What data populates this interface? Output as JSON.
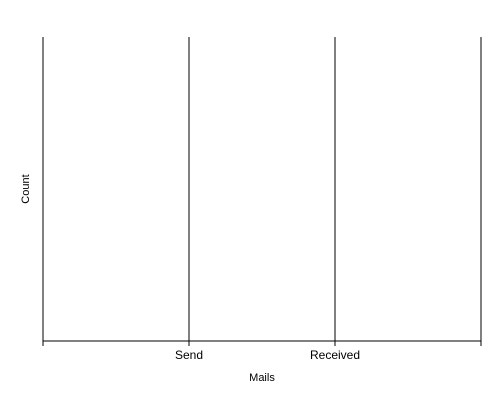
{
  "chart_data": {
    "type": "bar",
    "categories": [
      "Send",
      "Received"
    ],
    "values": [
      0,
      0
    ],
    "xlabel": "Mails",
    "ylabel": "Count",
    "grid": false,
    "legend": "none",
    "colors": {
      "axis": "#000000",
      "background": "#ffffff"
    }
  }
}
